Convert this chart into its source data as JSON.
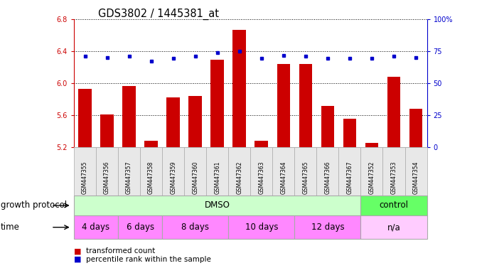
{
  "title": "GDS3802 / 1445381_at",
  "samples": [
    "GSM447355",
    "GSM447356",
    "GSM447357",
    "GSM447358",
    "GSM447359",
    "GSM447360",
    "GSM447361",
    "GSM447362",
    "GSM447363",
    "GSM447364",
    "GSM447365",
    "GSM447366",
    "GSM447367",
    "GSM447352",
    "GSM447353",
    "GSM447354"
  ],
  "bar_values": [
    5.93,
    5.61,
    5.97,
    5.28,
    5.82,
    5.84,
    6.29,
    6.67,
    5.28,
    6.24,
    6.24,
    5.72,
    5.56,
    5.26,
    6.08,
    5.68
  ],
  "dot_values": [
    6.34,
    6.32,
    6.34,
    6.28,
    6.31,
    6.34,
    6.38,
    6.4,
    6.31,
    6.35,
    6.34,
    6.31,
    6.31,
    6.31,
    6.34,
    6.32
  ],
  "ylim_min": 5.2,
  "ylim_max": 6.8,
  "y2lim_min": 0,
  "y2lim_max": 100,
  "yticks": [
    5.2,
    5.6,
    6.0,
    6.4,
    6.8
  ],
  "y2ticks": [
    0,
    25,
    50,
    75,
    100
  ],
  "bar_color": "#cc0000",
  "dot_color": "#0000cc",
  "bg_color": "#ffffff",
  "tick_area_color": "#dddddd",
  "dmso_color": "#ccffcc",
  "control_color": "#66ff66",
  "time_dmso_color": "#ff88ff",
  "time_na_color": "#ffccff",
  "growth_protocol_groups": [
    {
      "label": "DMSO",
      "start": 0,
      "end": 12
    },
    {
      "label": "control",
      "start": 13,
      "end": 15
    }
  ],
  "time_groups": [
    {
      "label": "4 days",
      "start": 0,
      "end": 1
    },
    {
      "label": "6 days",
      "start": 2,
      "end": 3
    },
    {
      "label": "8 days",
      "start": 4,
      "end": 6
    },
    {
      "label": "10 days",
      "start": 7,
      "end": 9
    },
    {
      "label": "12 days",
      "start": 10,
      "end": 12
    },
    {
      "label": "n/a",
      "start": 13,
      "end": 15
    }
  ],
  "legend_bar_label": "transformed count",
  "legend_dot_label": "percentile rank within the sample",
  "growth_protocol_label": "growth protocol",
  "time_label": "time",
  "tick_fontsize": 7,
  "label_fontsize": 8.5,
  "title_fontsize": 10.5,
  "annot_fontsize": 8.5
}
